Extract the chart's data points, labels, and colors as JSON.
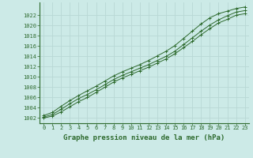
{
  "x": [
    0,
    1,
    2,
    3,
    4,
    5,
    6,
    7,
    8,
    9,
    10,
    11,
    12,
    13,
    14,
    15,
    16,
    17,
    18,
    19,
    20,
    21,
    22,
    23
  ],
  "line_min": [
    1002.0,
    1002.4,
    1003.2,
    1004.2,
    1005.2,
    1006.0,
    1007.0,
    1008.0,
    1009.0,
    1009.8,
    1010.5,
    1011.2,
    1011.9,
    1012.7,
    1013.5,
    1014.5,
    1015.7,
    1016.9,
    1018.2,
    1019.4,
    1020.5,
    1021.2,
    1022.0,
    1022.3
  ],
  "line_mean": [
    1002.2,
    1002.7,
    1003.7,
    1004.8,
    1005.8,
    1006.6,
    1007.5,
    1008.5,
    1009.5,
    1010.3,
    1011.0,
    1011.7,
    1012.4,
    1013.2,
    1014.0,
    1015.0,
    1016.3,
    1017.6,
    1018.9,
    1020.1,
    1021.1,
    1021.9,
    1022.6,
    1022.9
  ],
  "line_max": [
    1002.5,
    1003.1,
    1004.3,
    1005.4,
    1006.4,
    1007.3,
    1008.2,
    1009.2,
    1010.2,
    1011.0,
    1011.7,
    1012.4,
    1013.2,
    1014.1,
    1015.0,
    1016.1,
    1017.5,
    1018.9,
    1020.3,
    1021.5,
    1022.3,
    1022.8,
    1023.3,
    1023.6
  ],
  "line_color": "#2d6a2d",
  "bg_color": "#cceae7",
  "grid_color": "#b8d8d5",
  "xlabel": "Graphe pression niveau de la mer (hPa)",
  "ylim": [
    1001.0,
    1024.5
  ],
  "xlim": [
    -0.5,
    23.5
  ],
  "yticks": [
    1002,
    1004,
    1006,
    1008,
    1010,
    1012,
    1014,
    1016,
    1018,
    1020,
    1022
  ],
  "xticks": [
    0,
    1,
    2,
    3,
    4,
    5,
    6,
    7,
    8,
    9,
    10,
    11,
    12,
    13,
    14,
    15,
    16,
    17,
    18,
    19,
    20,
    21,
    22,
    23
  ],
  "tick_fontsize": 5.0,
  "xlabel_fontsize": 6.5,
  "line_width": 0.7,
  "marker_size": 2.8
}
